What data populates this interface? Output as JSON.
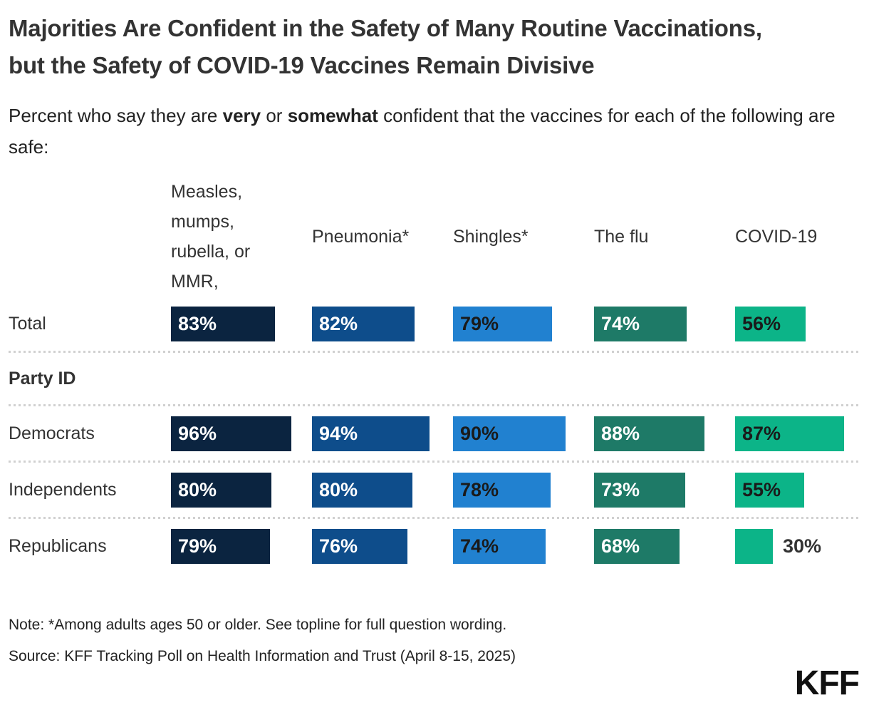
{
  "title": "Majorities Are Confident in the Safety of Many Routine Vaccinations, but the Safety of COVID-19 Vaccines Remain Divisive",
  "subtitle": {
    "part1": "Percent who say they are ",
    "bold1": "very",
    "part2": " or ",
    "bold2": "somewhat",
    "part3": " confident that the vaccines for each of the following are safe:"
  },
  "chart_data": {
    "type": "bar",
    "orientation": "horizontal",
    "unit": "%",
    "value_range": [
      0,
      100
    ],
    "grid": false,
    "columns": [
      {
        "label": "Measles, mumps, rubella, or MMR,",
        "color": "#0b2440",
        "value_label_color": "#ffffff"
      },
      {
        "label": "Pneumonia*",
        "color": "#0e4d8b",
        "value_label_color": "#ffffff"
      },
      {
        "label": "Shingles*",
        "color": "#2181d0",
        "value_label_color": "#1a1a1a"
      },
      {
        "label": "The flu",
        "color": "#1e7a67",
        "value_label_color": "#ffffff"
      },
      {
        "label": "COVID-19",
        "color": "#0cb488",
        "value_label_color": "#1a1a1a"
      }
    ],
    "rows": [
      {
        "type": "data",
        "label": "Total",
        "values": [
          83,
          82,
          79,
          74,
          56
        ]
      },
      {
        "type": "section",
        "label": "Party ID"
      },
      {
        "type": "data",
        "label": "Democrats",
        "values": [
          96,
          94,
          90,
          88,
          87
        ]
      },
      {
        "type": "data",
        "label": "Independents",
        "values": [
          80,
          80,
          78,
          73,
          55
        ]
      },
      {
        "type": "data",
        "label": "Republicans",
        "values": [
          79,
          76,
          74,
          68,
          30
        ]
      }
    ]
  },
  "note": "Note: *Among adults ages 50 or older. See topline for full question wording.",
  "source": "Source: KFF Tracking Poll on Health Information and Trust (April 8-15, 2025)",
  "logo": "KFF"
}
